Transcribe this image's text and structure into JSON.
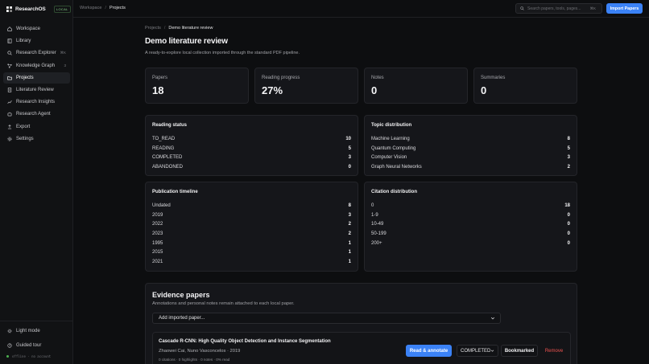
{
  "app": {
    "name": "ResearchOS",
    "badge": "LOCAL"
  },
  "sidebar": {
    "items": [
      {
        "label": "Workspace",
        "icon": "home-icon"
      },
      {
        "label": "Library",
        "icon": "book-icon"
      },
      {
        "label": "Research Explorer",
        "icon": "search-icon",
        "hint": "⌘K"
      },
      {
        "label": "Knowledge Graph",
        "icon": "graph-icon",
        "hint": "3"
      },
      {
        "label": "Projects",
        "icon": "folder-icon",
        "active": true
      },
      {
        "label": "Literature Review",
        "icon": "document-icon"
      },
      {
        "label": "Research Insights",
        "icon": "chart-icon"
      },
      {
        "label": "Research Agent",
        "icon": "agent-icon"
      },
      {
        "label": "Export",
        "icon": "export-icon"
      },
      {
        "label": "Settings",
        "icon": "gear-icon"
      }
    ],
    "bottom": [
      {
        "label": "Light mode",
        "icon": "sun-icon"
      },
      {
        "label": "Guided tour",
        "icon": "help-icon"
      }
    ],
    "status": "offline · no account"
  },
  "topbar": {
    "breadcrumb": [
      "Workspace",
      "Projects"
    ],
    "search_placeholder": "Search papers, tools, pages...",
    "search_shortcut": "⌘K",
    "import_label": "Import Papers"
  },
  "main": {
    "breadcrumb": [
      "Projects",
      "Demo literature review"
    ],
    "title": "Demo literature review",
    "subtitle": "A ready-to-explore local collection imported through the standard PDF pipeline.",
    "stats": [
      {
        "label": "Papers",
        "value": "18"
      },
      {
        "label": "Reading progress",
        "value": "27%"
      },
      {
        "label": "Notes",
        "value": "0"
      },
      {
        "label": "Summaries",
        "value": "0"
      }
    ],
    "reading_status": {
      "title": "Reading status",
      "rows": [
        {
          "label": "TO_READ",
          "value": "10"
        },
        {
          "label": "READING",
          "value": "5"
        },
        {
          "label": "COMPLETED",
          "value": "3"
        },
        {
          "label": "ABANDONED",
          "value": "0"
        }
      ]
    },
    "topic_distribution": {
      "title": "Topic distribution",
      "rows": [
        {
          "label": "Machine Learning",
          "value": "8"
        },
        {
          "label": "Quantum Computing",
          "value": "5"
        },
        {
          "label": "Computer Vision",
          "value": "3"
        },
        {
          "label": "Graph Neural Networks",
          "value": "2"
        }
      ]
    },
    "publication_timeline": {
      "title": "Publication timeline",
      "rows": [
        {
          "label": "Undated",
          "value": "8"
        },
        {
          "label": "2019",
          "value": "3"
        },
        {
          "label": "2022",
          "value": "2"
        },
        {
          "label": "2023",
          "value": "2"
        },
        {
          "label": "1995",
          "value": "1"
        },
        {
          "label": "2015",
          "value": "1"
        },
        {
          "label": "2021",
          "value": "1"
        }
      ]
    },
    "citation_distribution": {
      "title": "Citation distribution",
      "rows": [
        {
          "label": "0",
          "value": "18"
        },
        {
          "label": "1-9",
          "value": "0"
        },
        {
          "label": "10-49",
          "value": "0"
        },
        {
          "label": "50-199",
          "value": "0"
        },
        {
          "label": "200+",
          "value": "0"
        }
      ]
    },
    "evidence": {
      "title": "Evidence papers",
      "subtitle": "Annotations and personal notes remain attached to each local paper.",
      "select_label": "Add imported paper...",
      "paper": {
        "title": "Cascade R-CNN: High Quality Object Detection and Instance Segmentation",
        "authors": "Zhaowei Cai, Nuno Vasconcelos · 2019",
        "meta": "0 citations · 0 highlights · 0 notes · 0% read",
        "read_label": "Read & annotate",
        "status": "COMPLETED",
        "bookmark_label": "Bookmarked",
        "remove_label": "Remove"
      }
    }
  },
  "colors": {
    "accent": "#3b82f6",
    "danger": "#ef5350",
    "background": "#0d0e10",
    "card": "#15161a"
  }
}
